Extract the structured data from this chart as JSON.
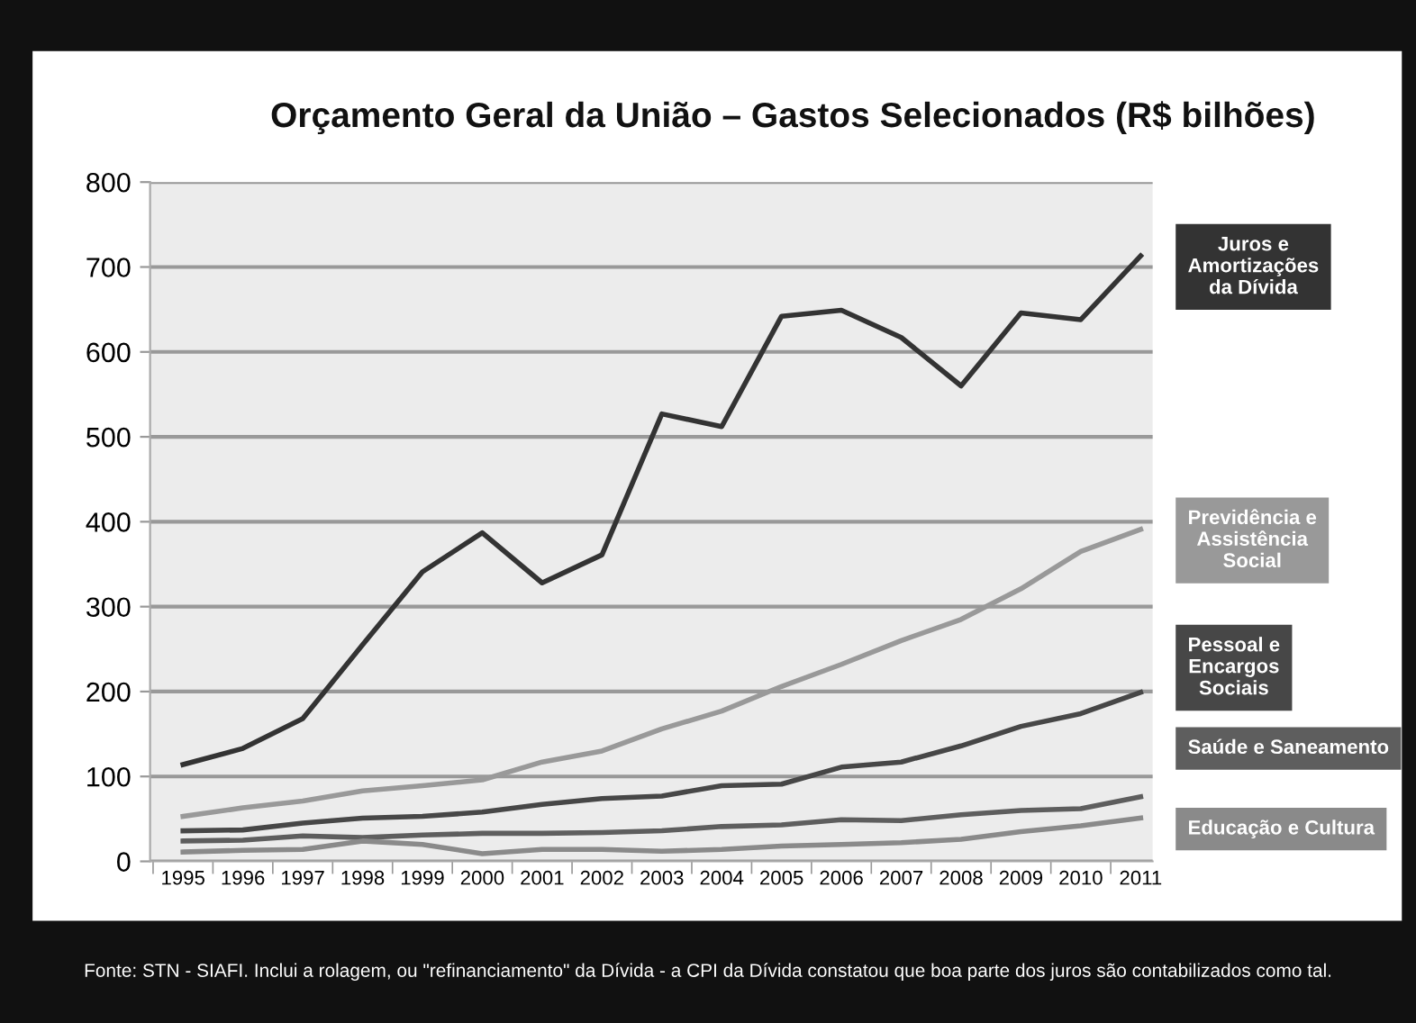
{
  "chart_data": {
    "type": "line",
    "title": "Orçamento Geral da União – Gastos Selecionados (R$ bilhões)",
    "categories": [
      "1995",
      "1996",
      "1997",
      "1998",
      "1999",
      "2000",
      "2001",
      "2002",
      "2003",
      "2004",
      "2005",
      "2006",
      "2007",
      "2008",
      "2009",
      "2010",
      "2011"
    ],
    "series": [
      {
        "name": "Juros e Amortizações da Dívida",
        "color": "#333333",
        "values": [
          114,
          133,
          168,
          255,
          341,
          387,
          328,
          361,
          527,
          512,
          642,
          649,
          617,
          560,
          646,
          638,
          713
        ]
      },
      {
        "name": "Previdência e Assistência Social",
        "color": "#999999",
        "values": [
          53,
          63,
          71,
          83,
          89,
          96,
          117,
          130,
          156,
          177,
          206,
          232,
          260,
          285,
          321,
          365,
          391
        ]
      },
      {
        "name": "Pessoal e Encargos Sociais",
        "color": "#474747",
        "values": [
          36,
          37,
          45,
          51,
          53,
          58,
          67,
          74,
          77,
          89,
          91,
          111,
          117,
          136,
          159,
          174,
          199
        ]
      },
      {
        "name": "Saúde e Saneamento",
        "color": "#5e5e5e",
        "values": [
          24,
          25,
          30,
          28,
          31,
          33,
          33,
          34,
          36,
          41,
          43,
          49,
          48,
          55,
          60,
          62,
          76
        ]
      },
      {
        "name": "Educação e Cultura",
        "color": "#8a8a8a",
        "values": [
          11,
          13,
          14,
          24,
          20,
          9,
          14,
          14,
          12,
          14,
          18,
          20,
          22,
          26,
          35,
          42,
          51
        ]
      }
    ],
    "ylim": [
      0,
      800
    ],
    "yticks": [
      0,
      100,
      200,
      300,
      400,
      500,
      600,
      700,
      800
    ],
    "grid": "y",
    "annotations": [
      "Fonte: STN - SIAFI. Inclui a rolagem, ou \"refinanciamento\" da Dívida - a CPI da Dívida constatou que boa parte dos juros são contabilizados como tal."
    ]
  }
}
